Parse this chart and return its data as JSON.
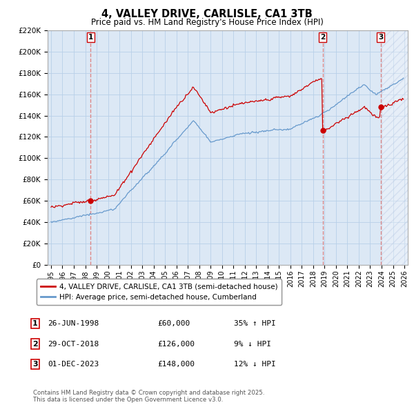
{
  "title": "4, VALLEY DRIVE, CARLISLE, CA1 3TB",
  "subtitle": "Price paid vs. HM Land Registry's House Price Index (HPI)",
  "ylim": [
    0,
    220000
  ],
  "yticks": [
    0,
    20000,
    40000,
    60000,
    80000,
    100000,
    120000,
    140000,
    160000,
    180000,
    200000,
    220000
  ],
  "ytick_labels": [
    "£0",
    "£20K",
    "£40K",
    "£60K",
    "£80K",
    "£100K",
    "£120K",
    "£140K",
    "£160K",
    "£180K",
    "£200K",
    "£220K"
  ],
  "xlim_start": 1994.7,
  "xlim_end": 2026.3,
  "plot_bg_color": "#dce8f5",
  "background_color": "#ffffff",
  "grid_color": "#b8cfe8",
  "sale1_date": 1998.482,
  "sale1_price": 60000,
  "sale2_date": 2018.832,
  "sale2_price": 126000,
  "sale3_date": 2023.917,
  "sale3_price": 148000,
  "red_line_color": "#cc0000",
  "blue_line_color": "#6699cc",
  "vline_color": "#dd8888",
  "legend_label_red": "4, VALLEY DRIVE, CARLISLE, CA1 3TB (semi-detached house)",
  "legend_label_blue": "HPI: Average price, semi-detached house, Cumberland",
  "table_row1": [
    "1",
    "26-JUN-1998",
    "£60,000",
    "35% ↑ HPI"
  ],
  "table_row2": [
    "2",
    "29-OCT-2018",
    "£126,000",
    "9% ↓ HPI"
  ],
  "table_row3": [
    "3",
    "01-DEC-2023",
    "£148,000",
    "12% ↓ HPI"
  ],
  "footer": "Contains HM Land Registry data © Crown copyright and database right 2025.\nThis data is licensed under the Open Government Licence v3.0."
}
